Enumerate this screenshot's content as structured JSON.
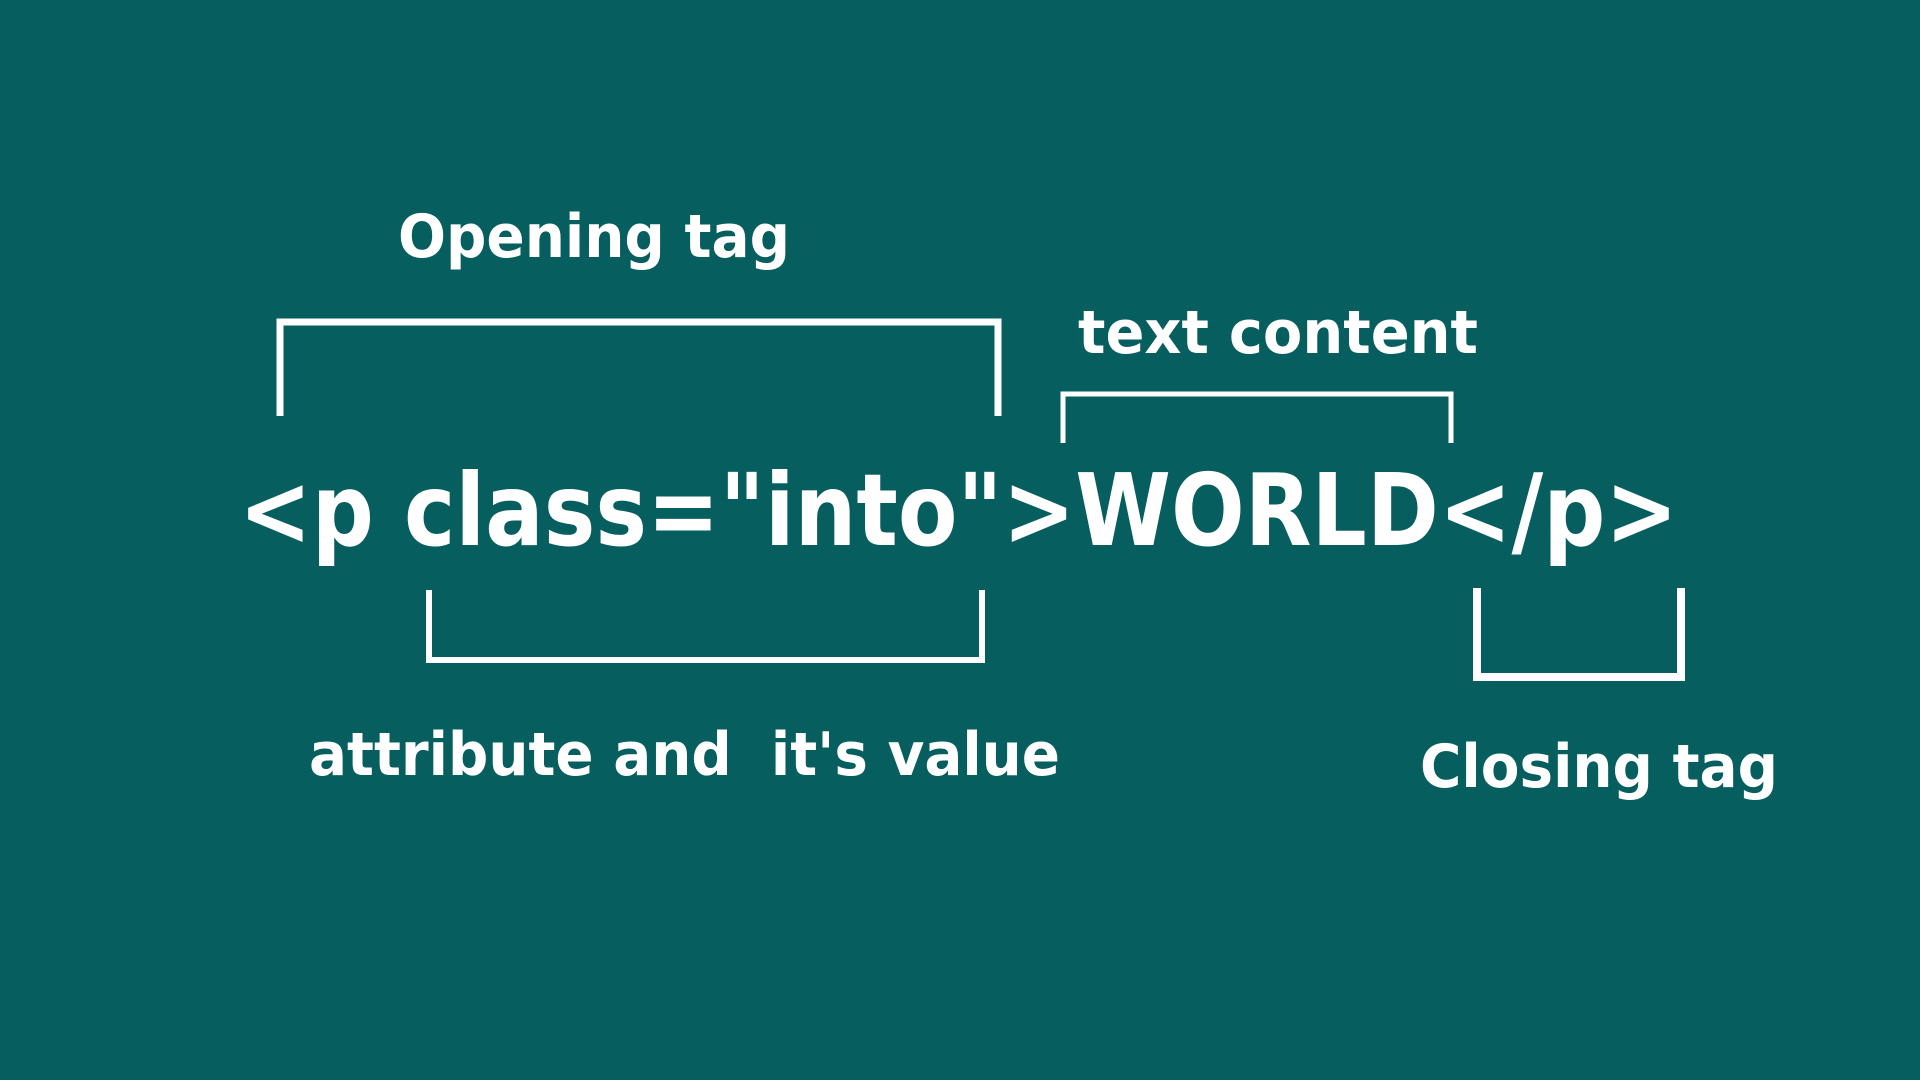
{
  "code": "<p class=\"into\">WORLD</p>",
  "labels": {
    "opening_tag": "Opening tag",
    "text_content": "text content",
    "attribute": "attribute and  it's value",
    "closing_tag": "Closing tag"
  }
}
